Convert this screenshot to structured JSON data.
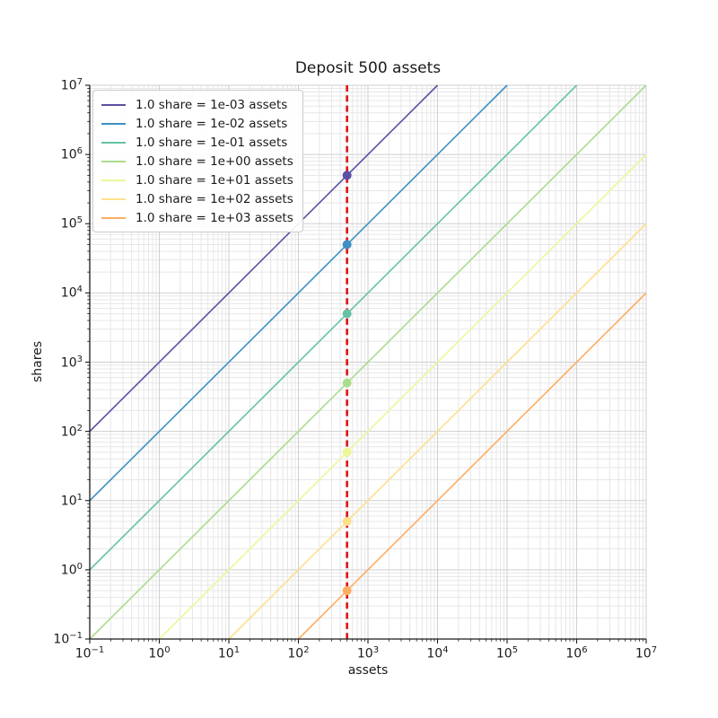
{
  "chart_data": {
    "type": "line",
    "title": "Deposit 500 assets",
    "xlabel": "assets",
    "ylabel": "shares",
    "xscale": "log",
    "yscale": "log",
    "xlim": [
      0.1,
      10000000
    ],
    "ylim": [
      0.1,
      10000000
    ],
    "x_tick_exponents": [
      -1,
      0,
      1,
      2,
      3,
      4,
      5,
      6,
      7
    ],
    "y_tick_exponents": [
      -1,
      0,
      1,
      2,
      3,
      4,
      5,
      6,
      7
    ],
    "grid": {
      "major": true,
      "minor": true,
      "major_color": "#cfcfcf",
      "minor_color": "#e7e7e7"
    },
    "legend_position": "upper-left",
    "deposit_marker": {
      "x": 500,
      "color": "#e01a1a",
      "style": "dashed"
    },
    "series": [
      {
        "label": "1.0 share = 1e-03 assets",
        "assets_per_share": 0.001,
        "color": "#5a51a5",
        "point": {
          "x": 500,
          "y": 500000
        }
      },
      {
        "label": "1.0 share = 1e-02 assets",
        "assets_per_share": 0.01,
        "color": "#3f90c4",
        "point": {
          "x": 500,
          "y": 50000
        }
      },
      {
        "label": "1.0 share = 1e-01 assets",
        "assets_per_share": 0.1,
        "color": "#66c2a5",
        "point": {
          "x": 500,
          "y": 5000
        }
      },
      {
        "label": "1.0 share = 1e+00 assets",
        "assets_per_share": 1,
        "color": "#abdc8d",
        "point": {
          "x": 500,
          "y": 500
        }
      },
      {
        "label": "1.0 share = 1e+01 assets",
        "assets_per_share": 10,
        "color": "#ecf79a",
        "point": {
          "x": 500,
          "y": 50
        }
      },
      {
        "label": "1.0 share = 1e+02 assets",
        "assets_per_share": 100,
        "color": "#fee08b",
        "point": {
          "x": 500,
          "y": 5
        }
      },
      {
        "label": "1.0 share = 1e+03 assets",
        "assets_per_share": 1000,
        "color": "#fdae61",
        "point": {
          "x": 500,
          "y": 0.5
        }
      }
    ]
  }
}
